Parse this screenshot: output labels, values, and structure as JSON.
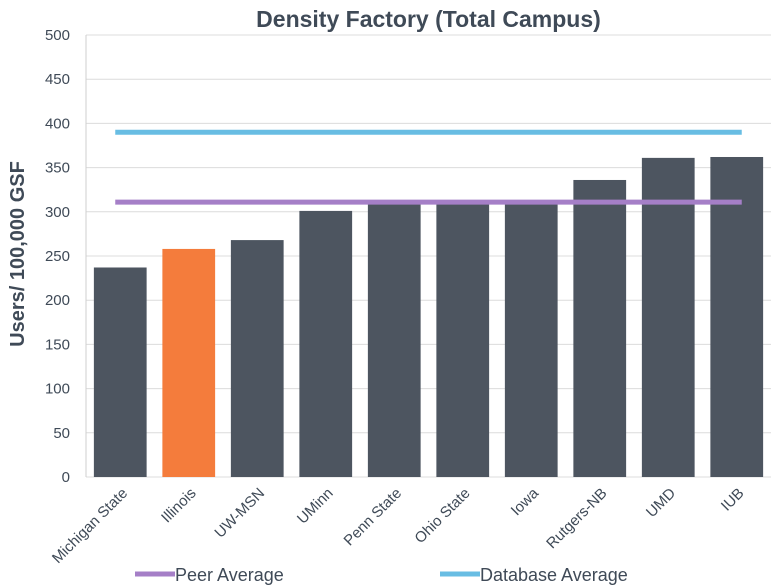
{
  "chart_data": {
    "type": "bar",
    "title": "Density Factory (Total Campus)",
    "xlabel": "",
    "ylabel": "Users/ 100,000 GSF",
    "ylim": [
      0,
      500
    ],
    "yticks": [
      0,
      50,
      100,
      150,
      200,
      250,
      300,
      350,
      400,
      450,
      500
    ],
    "grid": true,
    "categories": [
      "Michigan State",
      "Illinois",
      "UW-MSN",
      "UMinn",
      "Penn State",
      "Ohio State",
      "Iowa",
      "Rutgers-NB",
      "UMD",
      "IUB"
    ],
    "values": [
      237,
      258,
      268,
      301,
      310,
      311,
      312,
      336,
      361,
      362
    ],
    "bar_color": "#4d5560",
    "highlight": {
      "category": "Illinois",
      "color": "#f47c3c"
    },
    "reference_lines": [
      {
        "name": "Peer Average",
        "value": 311,
        "color": "#a57fc7"
      },
      {
        "name": "Database Average",
        "value": 390,
        "color": "#68bde3"
      }
    ],
    "legend_position": "bottom"
  }
}
